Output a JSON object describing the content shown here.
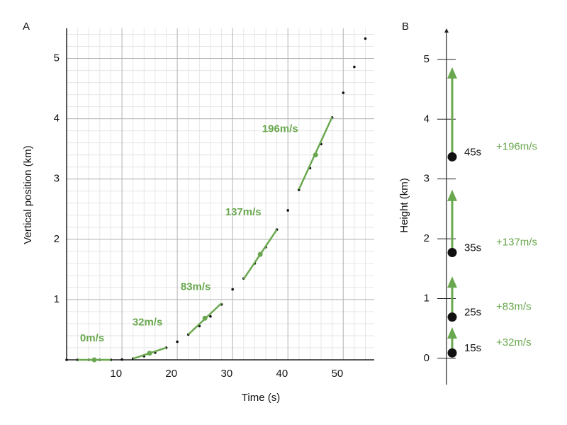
{
  "chart_data": [
    {
      "type": "scatter",
      "panel": "A",
      "x_label": "Time (s)",
      "y_label": "Vertical position (km)",
      "xlim": [
        0,
        55.6
      ],
      "ylim": [
        0,
        5.5
      ],
      "xticks": [
        10,
        20,
        30,
        40,
        50
      ],
      "yticks": [
        1,
        2,
        3,
        4,
        5
      ],
      "grid": true,
      "color": "#111111",
      "tangent_color": "#6aa84f",
      "x": [
        0,
        2,
        4,
        6,
        8,
        10,
        12,
        14,
        16,
        18,
        20,
        22,
        24,
        26,
        28,
        30,
        32,
        34,
        36,
        38,
        40,
        42,
        44,
        46,
        48,
        50,
        52,
        54
      ],
      "values": [
        0,
        0,
        0,
        0,
        0,
        0.005,
        0.02,
        0.06,
        0.12,
        0.2,
        0.3,
        0.42,
        0.56,
        0.72,
        0.92,
        1.17,
        1.35,
        1.6,
        1.87,
        2.16,
        2.48,
        2.82,
        3.18,
        3.58,
        4.02,
        4.43,
        4.86,
        5.33
      ],
      "tangents": [
        {
          "label": "0m/s",
          "x": [
            2,
            8
          ],
          "y": [
            0,
            0
          ],
          "point": [
            5,
            0
          ]
        },
        {
          "label": "32m/s",
          "x": [
            12,
            18
          ],
          "y": [
            0.02,
            0.2
          ],
          "point": [
            15,
            0.11
          ]
        },
        {
          "label": "83m/s",
          "x": [
            22,
            28
          ],
          "y": [
            0.42,
            0.94
          ],
          "point": [
            25,
            0.69
          ]
        },
        {
          "label": "137m/s",
          "x": [
            32,
            38
          ],
          "y": [
            1.34,
            2.16
          ],
          "point": [
            35,
            1.75
          ]
        },
        {
          "label": "196m/s",
          "x": [
            42,
            48
          ],
          "y": [
            2.83,
            4.03
          ],
          "point": [
            45,
            3.4
          ]
        }
      ]
    },
    {
      "type": "vector",
      "panel": "B",
      "y_label": "Height (km)",
      "ylim": [
        -0.44,
        5.52
      ],
      "yticks": [
        0,
        1,
        2,
        3,
        4,
        5
      ],
      "color": "#111111",
      "arrow_color": "#6aa84f",
      "points": [
        {
          "label": "15s",
          "value": 0.09,
          "tip": 0.52,
          "velocity_label": "+32m/s"
        },
        {
          "label": "25s",
          "value": 0.69,
          "tip": 1.37,
          "velocity_label": "+83m/s"
        },
        {
          "label": "35s",
          "value": 1.77,
          "tip": 2.82,
          "velocity_label": "+137m/s"
        },
        {
          "label": "45s",
          "value": 3.37,
          "tip": 4.87,
          "velocity_label": "+196m/s"
        }
      ]
    }
  ]
}
